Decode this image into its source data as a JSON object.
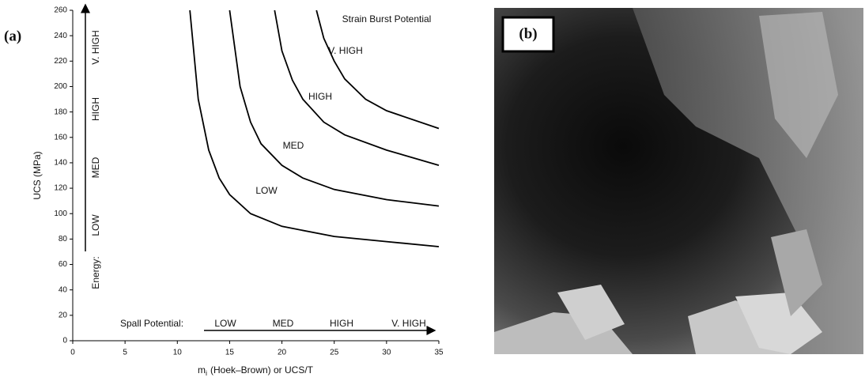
{
  "chart_data": {
    "type": "line",
    "panel_label": "(a)",
    "annotation": "Strain Burst Potential",
    "y_label": "UCS (MPa)",
    "x_label": {
      "main": "m",
      "sub": "i",
      "rest": "(Hoek–Brown)  or  UCS/T"
    },
    "spall": {
      "label": "Spall Potential:",
      "levels": [
        "LOW",
        "MED",
        "HIGH",
        "V. HIGH"
      ]
    },
    "energy": {
      "label": "Energy:",
      "levels": [
        "LOW",
        "MED",
        "HIGH",
        "V. HIGH"
      ]
    },
    "xlim": [
      0,
      35
    ],
    "xticks": [
      0,
      5,
      10,
      15,
      20,
      25,
      30,
      35
    ],
    "ylim": [
      0,
      260
    ],
    "yticks": [
      0,
      20,
      40,
      60,
      80,
      100,
      120,
      140,
      160,
      180,
      200,
      220,
      240,
      260
    ],
    "grid": false,
    "series": [
      {
        "name": "LOW",
        "color": "#000000",
        "x": [
          11.2,
          12,
          13,
          14,
          15,
          17,
          20,
          25,
          30,
          35
        ],
        "values": [
          260,
          190,
          150,
          128,
          115,
          100,
          90,
          82,
          78,
          74
        ]
      },
      {
        "name": "MED",
        "color": "#000000",
        "x": [
          15,
          16,
          17,
          18,
          20,
          22,
          25,
          30,
          35
        ],
        "values": [
          260,
          200,
          172,
          155,
          138,
          128,
          119,
          111,
          106
        ]
      },
      {
        "name": "HIGH",
        "color": "#000000",
        "x": [
          19.3,
          20,
          21,
          22,
          24,
          26,
          30,
          35
        ],
        "values": [
          260,
          228,
          205,
          190,
          172,
          162,
          150,
          138
        ]
      },
      {
        "name": "V. HIGH",
        "color": "#000000",
        "x": [
          23.3,
          24,
          25,
          26,
          28,
          30,
          35
        ],
        "values": [
          260,
          238,
          220,
          206,
          190,
          181,
          167
        ]
      }
    ]
  },
  "photo": {
    "label": "(b)"
  }
}
